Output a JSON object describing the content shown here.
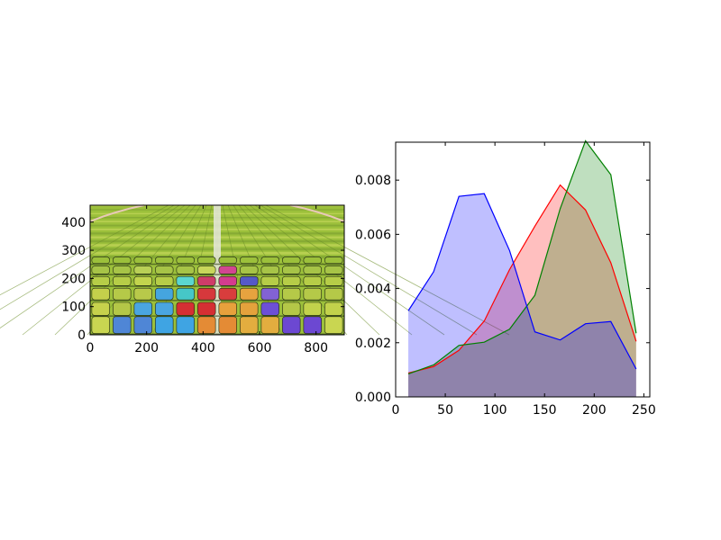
{
  "chart_data": [
    {
      "type": "image",
      "image": {
        "depicts": "stadium-seats",
        "top_color": "#a7bf3c",
        "field_color": "#9cc03b",
        "aisle_color": "#e6e8dc",
        "rows": [
          {
            "palette": [
              "#9cc03b",
              "#b6cf52"
            ],
            "accent": [
              "#9cc03b",
              "#9cc03b",
              "#9cc03b",
              "#9cc03b",
              "#9cc03b",
              "#9cc03b",
              "#9cc03b",
              "#9cc03b",
              "#9cc03b",
              "#9cc03b",
              "#9cc03b",
              "#9cc03b"
            ]
          },
          {
            "palette": [
              "#a7c447"
            ],
            "accent": [
              "#a7c447",
              "#a7c447",
              "#b9d056",
              "#a7c447",
              "#a7c447",
              "#c8d65b",
              "#d24691",
              "#a7c447",
              "#a7c447",
              "#a7c447",
              "#a7c447",
              "#a7c447"
            ]
          },
          {
            "palette": [
              "#b0c94a"
            ],
            "accent": [
              "#b6cd47",
              "#b6cd47",
              "#c2d44d",
              "#b6cd47",
              "#5bd6d0",
              "#cf3c69",
              "#d43c8e",
              "#5559c8",
              "#b6cd47",
              "#b6cd47",
              "#b6cd47",
              "#b6cd47"
            ]
          },
          {
            "palette": [
              "#b8cd49"
            ],
            "accent": [
              "#c4d04b",
              "#b5c948",
              "#b8c94a",
              "#45a5df",
              "#46c7c7",
              "#d6383c",
              "#d83d3d",
              "#e7a33f",
              "#8262d5",
              "#b5c948",
              "#b5c948",
              "#b5c948"
            ]
          },
          {
            "palette": [
              "#c2d24b"
            ],
            "accent": [
              "#c6d24c",
              "#b4c747",
              "#4aa5e0",
              "#4aa5e0",
              "#d52f33",
              "#d52f33",
              "#e7a13c",
              "#e4a23c",
              "#6d4fd6",
              "#b4c747",
              "#c2d24b",
              "#c2d24b"
            ]
          },
          {
            "palette": [
              "#c9d651"
            ],
            "accent": [
              "#c9d651",
              "#4f86d6",
              "#4f86d6",
              "#3fa4e3",
              "#3fa4e3",
              "#e48b35",
              "#e48b35",
              "#e3ad3f",
              "#e3ad3f",
              "#6c48d2",
              "#6c48d2",
              "#c9d651"
            ]
          }
        ]
      },
      "xlim": [
        0,
        900
      ],
      "ylim": [
        0,
        460
      ],
      "x_ticks": [
        0,
        200,
        400,
        600,
        800
      ],
      "y_ticks": [
        0,
        100,
        200,
        300,
        400
      ],
      "x_tick_labels": [
        "0",
        "200",
        "400",
        "600",
        "800"
      ],
      "y_tick_labels": [
        "0",
        "100",
        "200",
        "300",
        "400"
      ]
    },
    {
      "type": "area",
      "xlim": [
        0,
        256
      ],
      "ylim": [
        0,
        0.0094
      ],
      "x_ticks": [
        0,
        50,
        100,
        150,
        200,
        250
      ],
      "y_ticks": [
        0,
        0.002,
        0.004,
        0.006,
        0.008
      ],
      "x_tick_labels": [
        "0",
        "50",
        "100",
        "150",
        "200",
        "250"
      ],
      "y_tick_labels": [
        "0.000",
        "0.002",
        "0.004",
        "0.006",
        "0.008"
      ],
      "x": [
        12.75,
        38.25,
        63.75,
        89.25,
        114.75,
        140.25,
        165.75,
        191.25,
        216.75,
        242.25
      ],
      "series": [
        {
          "color": "#ff0000",
          "fill": "#ffbfbf",
          "values": [
            0.00088,
            0.00112,
            0.00172,
            0.0028,
            0.0047,
            0.0063,
            0.00782,
            0.0069,
            0.00495,
            0.00205
          ]
        },
        {
          "color": "#008000",
          "fill": "#bfdfbf",
          "values": [
            0.00085,
            0.00118,
            0.0019,
            0.00202,
            0.0025,
            0.00375,
            0.00695,
            0.00945,
            0.0082,
            0.00235
          ]
        },
        {
          "color": "#0000ff",
          "fill": "#bfbfff",
          "values": [
            0.00318,
            0.00462,
            0.0074,
            0.0075,
            0.0054,
            0.0024,
            0.0021,
            0.0027,
            0.00278,
            0.00103
          ]
        }
      ]
    }
  ]
}
